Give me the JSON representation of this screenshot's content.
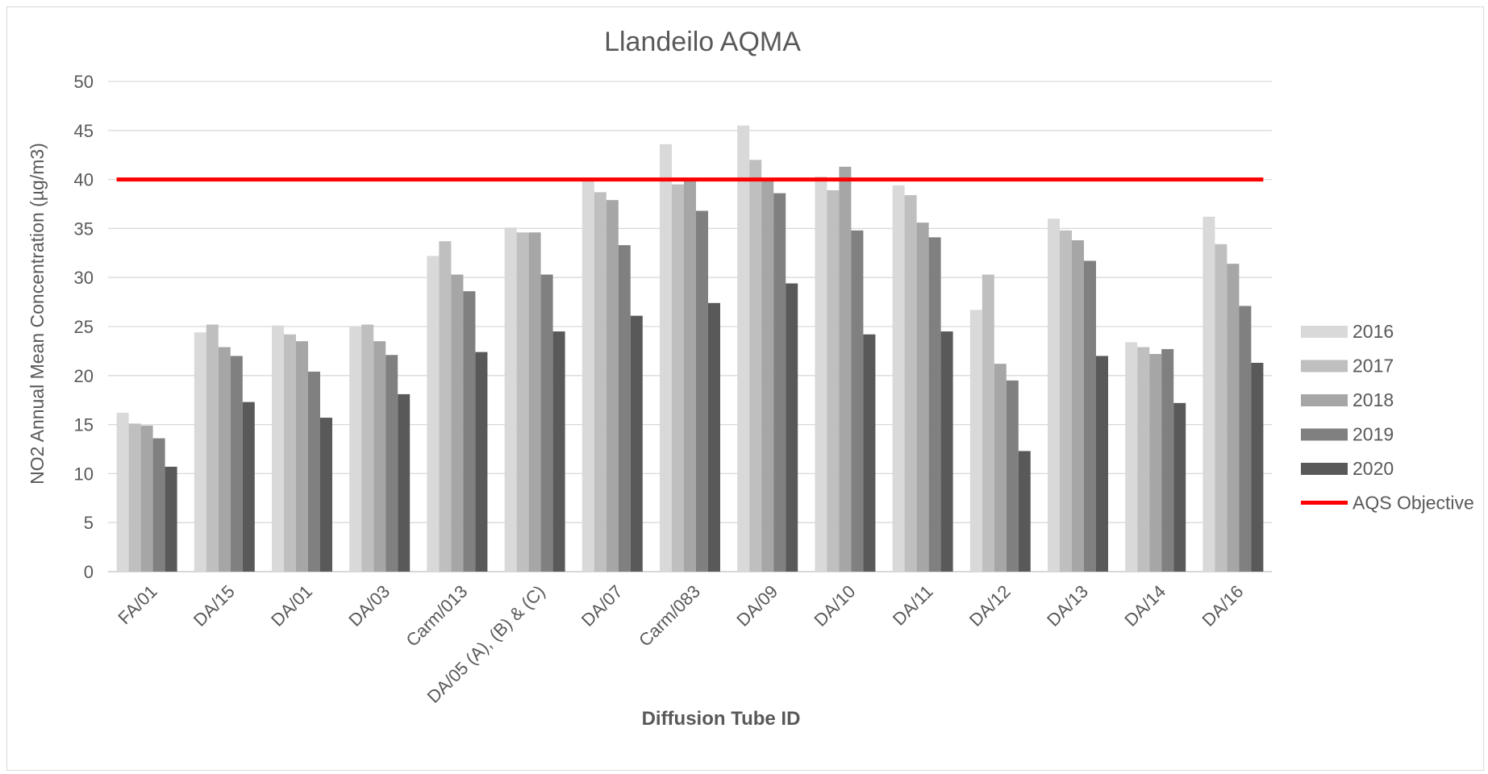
{
  "chart_data": {
    "type": "bar",
    "title": "Llandeilo AQMA",
    "xlabel": "Diffusion Tube ID",
    "ylabel": "NO2 Annual Mean Concentration (µg/m3)",
    "ylim": [
      0,
      50
    ],
    "yticks": [
      0,
      5,
      10,
      15,
      20,
      25,
      30,
      35,
      40,
      45,
      50
    ],
    "grid": true,
    "legend_position": "right",
    "categories": [
      "FA/01",
      "DA/15",
      "DA/01",
      "DA/03",
      "Carm/013",
      "DA/05 (A), (B) & (C)",
      "DA/07",
      "Carm/083",
      "DA/09",
      "DA/10",
      "DA/11",
      "DA/12",
      "DA/13",
      "DA/14",
      "DA/16"
    ],
    "series": [
      {
        "name": "2016",
        "color": "#d9d9d9",
        "values": [
          16.2,
          24.4,
          25.1,
          25.0,
          32.2,
          35.1,
          40.0,
          43.6,
          45.5,
          40.3,
          39.4,
          26.7,
          36.0,
          23.4,
          36.2
        ]
      },
      {
        "name": "2017",
        "color": "#bfbfbf",
        "values": [
          15.1,
          25.2,
          24.2,
          25.2,
          33.7,
          34.6,
          38.7,
          39.5,
          42.0,
          38.9,
          38.4,
          30.3,
          34.8,
          22.9,
          33.4
        ]
      },
      {
        "name": "2018",
        "color": "#a6a6a6",
        "values": [
          14.9,
          22.9,
          23.5,
          23.5,
          30.3,
          34.6,
          37.9,
          40.0,
          40.0,
          41.3,
          35.6,
          21.2,
          33.8,
          22.2,
          31.4
        ]
      },
      {
        "name": "2019",
        "color": "#808080",
        "values": [
          13.6,
          22.0,
          20.4,
          22.1,
          28.6,
          30.3,
          33.3,
          36.8,
          38.6,
          34.8,
          34.1,
          19.5,
          31.7,
          22.7,
          27.1
        ]
      },
      {
        "name": "2020",
        "color": "#595959",
        "values": [
          10.7,
          17.3,
          15.7,
          18.1,
          22.4,
          24.5,
          26.1,
          27.4,
          29.4,
          24.2,
          24.5,
          12.3,
          22.0,
          17.2,
          21.3
        ]
      }
    ],
    "reference_line": {
      "name": "AQS Objective",
      "value": 40,
      "color": "#ff0000"
    }
  }
}
